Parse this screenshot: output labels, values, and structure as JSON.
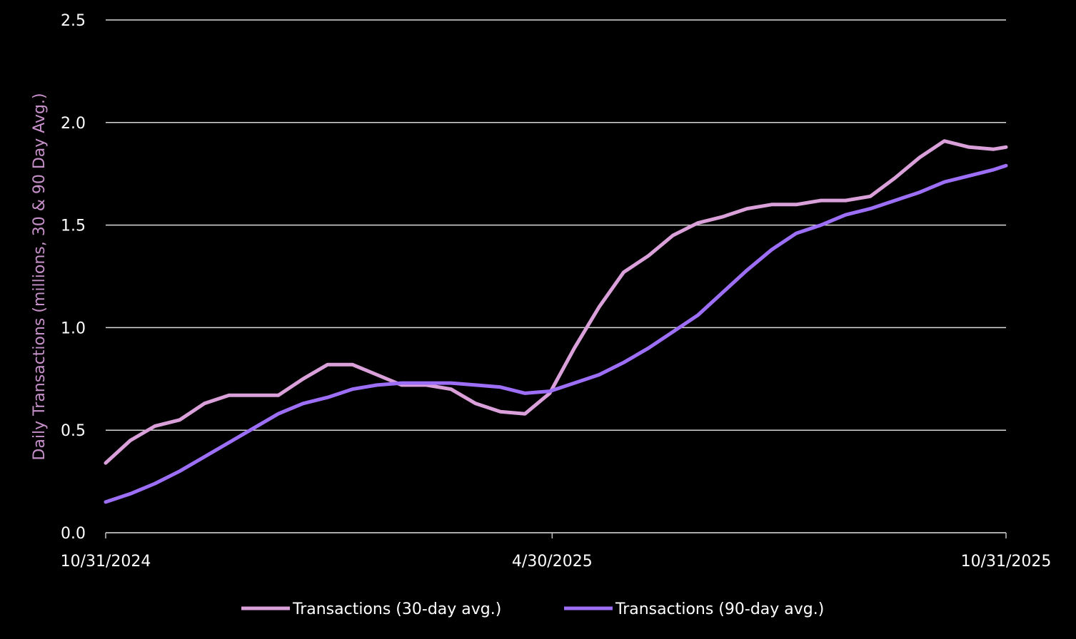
{
  "chart_data": {
    "type": "line",
    "y_label": "Daily Transactions (millions, 30 & 90 Day Avg.)",
    "x": [
      "2024-10-31",
      "2024-11-10",
      "2024-11-20",
      "2024-11-30",
      "2024-12-10",
      "2024-12-20",
      "2024-12-30",
      "2025-01-09",
      "2025-01-19",
      "2025-01-29",
      "2025-02-08",
      "2025-02-18",
      "2025-02-28",
      "2025-03-10",
      "2025-03-20",
      "2025-03-30",
      "2025-04-09",
      "2025-04-19",
      "2025-04-29",
      "2025-05-09",
      "2025-05-19",
      "2025-05-29",
      "2025-06-08",
      "2025-06-18",
      "2025-06-28",
      "2025-07-08",
      "2025-07-18",
      "2025-07-28",
      "2025-08-07",
      "2025-08-17",
      "2025-08-27",
      "2025-09-06",
      "2025-09-16",
      "2025-09-26",
      "2025-10-06",
      "2025-10-16",
      "2025-10-26",
      "2025-10-31"
    ],
    "series": [
      {
        "name": "Transactions (30-day avg.)",
        "color": "#d9a0da",
        "values": [
          0.34,
          0.45,
          0.52,
          0.55,
          0.63,
          0.67,
          0.67,
          0.67,
          0.75,
          0.82,
          0.82,
          0.77,
          0.72,
          0.72,
          0.7,
          0.63,
          0.59,
          0.58,
          0.68,
          0.9,
          1.1,
          1.27,
          1.35,
          1.45,
          1.51,
          1.54,
          1.58,
          1.6,
          1.6,
          1.62,
          1.62,
          1.64,
          1.73,
          1.83,
          1.91,
          1.88,
          1.87,
          1.88
        ]
      },
      {
        "name": "Transactions (90-day avg.)",
        "color": "#9d6ef6",
        "values": [
          0.15,
          0.19,
          0.24,
          0.3,
          0.37,
          0.44,
          0.51,
          0.58,
          0.63,
          0.66,
          0.7,
          0.72,
          0.73,
          0.73,
          0.73,
          0.72,
          0.71,
          0.68,
          0.69,
          0.73,
          0.77,
          0.83,
          0.9,
          0.98,
          1.06,
          1.17,
          1.28,
          1.38,
          1.46,
          1.5,
          1.55,
          1.58,
          1.62,
          1.66,
          1.71,
          1.74,
          1.77,
          1.79
        ]
      }
    ],
    "xlim": [
      "2024-10-31",
      "2025-10-31"
    ],
    "xticks": [
      {
        "value": "2024-10-31",
        "label": "10/31/2024"
      },
      {
        "value": "2025-04-30",
        "label": "4/30/2025"
      },
      {
        "value": "2025-10-31",
        "label": "10/31/2025"
      }
    ],
    "ylim": [
      0,
      2.5
    ],
    "yticks": [
      {
        "value": 0,
        "label": "0.0"
      },
      0.5,
      {
        "value": 1,
        "label": "1.0"
      },
      1.5,
      {
        "value": 2,
        "label": "2.0"
      },
      2.5
    ],
    "grid": true,
    "legend": "bottom"
  }
}
